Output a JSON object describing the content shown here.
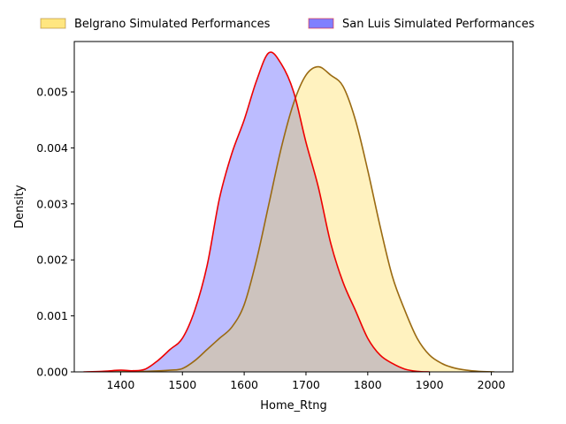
{
  "chart_data": {
    "type": "area",
    "title": "",
    "xlabel": "Home_Rtng",
    "ylabel": "Density",
    "xlim": [
      1325,
      2035
    ],
    "ylim": [
      0,
      0.0059
    ],
    "xticks": [
      1400,
      1500,
      1600,
      1700,
      1800,
      1900,
      2000
    ],
    "yticks": [
      0.0,
      0.001,
      0.002,
      0.003,
      0.004,
      0.005
    ],
    "ytick_labels": [
      "0.000",
      "0.001",
      "0.002",
      "0.003",
      "0.004",
      "0.005"
    ],
    "grid": false,
    "legend_position": "top",
    "series": [
      {
        "name": "Belgrano Simulated Performances",
        "fill": "#fff2bf",
        "legend_fill": "#ffe680",
        "stroke": "#9a6a12",
        "points": [
          [
            1380,
            0.0
          ],
          [
            1440,
            1e-05
          ],
          [
            1480,
            3e-05
          ],
          [
            1500,
            6e-05
          ],
          [
            1520,
            0.0002
          ],
          [
            1540,
            0.0004
          ],
          [
            1560,
            0.0006
          ],
          [
            1580,
            0.0008
          ],
          [
            1600,
            0.0012
          ],
          [
            1620,
            0.002
          ],
          [
            1640,
            0.003
          ],
          [
            1660,
            0.004
          ],
          [
            1680,
            0.0048
          ],
          [
            1700,
            0.0053
          ],
          [
            1720,
            0.00545
          ],
          [
            1740,
            0.0053
          ],
          [
            1760,
            0.0051
          ],
          [
            1780,
            0.0045
          ],
          [
            1800,
            0.0036
          ],
          [
            1820,
            0.0026
          ],
          [
            1840,
            0.0017
          ],
          [
            1860,
            0.0011
          ],
          [
            1880,
            0.0006
          ],
          [
            1900,
            0.0003
          ],
          [
            1920,
            0.00015
          ],
          [
            1940,
            7e-05
          ],
          [
            1960,
            3e-05
          ],
          [
            1980,
            1e-05
          ],
          [
            2005,
            0.0
          ]
        ]
      },
      {
        "name": "San Luis Simulated Performances",
        "fill": "#bcbcff",
        "legend_fill": "#8080ff",
        "stroke": "#ee0000",
        "points": [
          [
            1340,
            0.0
          ],
          [
            1370,
            1e-05
          ],
          [
            1400,
            3e-05
          ],
          [
            1420,
            2e-05
          ],
          [
            1440,
            5e-05
          ],
          [
            1460,
            0.0002
          ],
          [
            1480,
            0.0004
          ],
          [
            1500,
            0.0006
          ],
          [
            1520,
            0.0011
          ],
          [
            1540,
            0.0019
          ],
          [
            1560,
            0.0031
          ],
          [
            1580,
            0.0039
          ],
          [
            1600,
            0.0045
          ],
          [
            1620,
            0.0052
          ],
          [
            1640,
            0.0057
          ],
          [
            1660,
            0.0055
          ],
          [
            1680,
            0.005
          ],
          [
            1700,
            0.0041
          ],
          [
            1720,
            0.0033
          ],
          [
            1740,
            0.0023
          ],
          [
            1760,
            0.0016
          ],
          [
            1780,
            0.0011
          ],
          [
            1800,
            0.0006
          ],
          [
            1820,
            0.0003
          ],
          [
            1840,
            0.00015
          ],
          [
            1860,
            5e-05
          ],
          [
            1880,
            1e-05
          ],
          [
            1900,
            0.0
          ]
        ]
      }
    ],
    "overlap_fill": "#cdc3be"
  }
}
